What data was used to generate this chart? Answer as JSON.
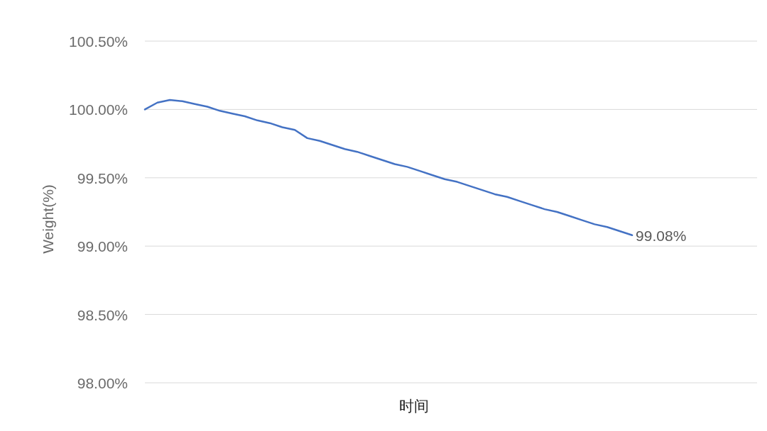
{
  "chart_data": {
    "type": "line",
    "xlabel": "时间",
    "ylabel": "Weight(%)",
    "grid": "y",
    "ylim": [
      98,
      100.5
    ],
    "yticks": [
      {
        "value": 98,
        "label": "98.00%"
      },
      {
        "value": 98.5,
        "label": "98.50%"
      },
      {
        "value": 99,
        "label": "99.00%"
      },
      {
        "value": 99.5,
        "label": "99.50%"
      },
      {
        "value": 100,
        "label": "100.00%"
      },
      {
        "value": 100.5,
        "label": "100.50%"
      }
    ],
    "categories": [
      null,
      null,
      null,
      null,
      null,
      null,
      null,
      null,
      null,
      null,
      null,
      null,
      null,
      null,
      null,
      null,
      null,
      null,
      null,
      null,
      null,
      null,
      null,
      null,
      null,
      null,
      null,
      null,
      null,
      null,
      null,
      null,
      null,
      null,
      null,
      null,
      null,
      null,
      null,
      null,
      null,
      null,
      null,
      null,
      null,
      null,
      null,
      null,
      null,
      null
    ],
    "series": [
      {
        "color": "#4472c4",
        "values": [
          100.0,
          100.05,
          100.07,
          100.06,
          100.04,
          100.02,
          99.99,
          99.97,
          99.95,
          99.92,
          99.9,
          99.87,
          99.85,
          99.79,
          99.77,
          99.74,
          99.71,
          99.69,
          99.66,
          99.63,
          99.6,
          99.58,
          99.55,
          99.52,
          99.49,
          99.47,
          99.44,
          99.41,
          99.38,
          99.36,
          99.33,
          99.3,
          99.27,
          99.25,
          99.22,
          99.19,
          99.16,
          99.14,
          99.11,
          99.08,
          null,
          null,
          null,
          null,
          null,
          null,
          null,
          null,
          null,
          null
        ],
        "value_labels": [
          null,
          null,
          null,
          null,
          null,
          null,
          null,
          null,
          null,
          null,
          null,
          null,
          null,
          null,
          null,
          null,
          null,
          null,
          null,
          null,
          null,
          null,
          null,
          null,
          null,
          null,
          null,
          null,
          null,
          null,
          null,
          null,
          null,
          null,
          null,
          null,
          null,
          null,
          null,
          "99.08%",
          null,
          null,
          null,
          null,
          null,
          null,
          null,
          null,
          null,
          null
        ]
      }
    ]
  }
}
